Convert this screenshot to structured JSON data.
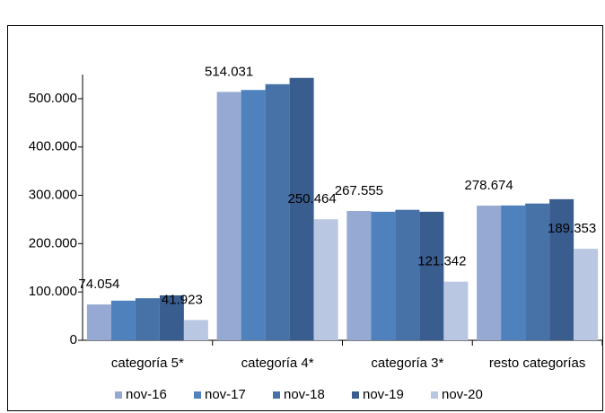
{
  "chart_data": {
    "type": "bar",
    "categories": [
      "categoría 5*",
      "categoría 4*",
      "categoría 3*",
      "resto categorías"
    ],
    "series": [
      {
        "name": "nov-16",
        "color": "#95a9d2",
        "values": [
          74054,
          514031,
          267555,
          278674
        ],
        "value_labels": [
          "74.054",
          "514.031",
          "267.555",
          "278.674"
        ]
      },
      {
        "name": "nov-17",
        "color": "#4f81bd",
        "values": [
          82000,
          518000,
          266000,
          279000
        ]
      },
      {
        "name": "nov-18",
        "color": "#4672a8",
        "values": [
          87000,
          530000,
          270000,
          283000
        ]
      },
      {
        "name": "nov-19",
        "color": "#3a5d8f",
        "values": [
          93000,
          543000,
          266000,
          292000
        ]
      },
      {
        "name": "nov-20",
        "color": "#b9c7e2",
        "values": [
          41923,
          250464,
          121342,
          189353
        ],
        "value_labels": [
          "41.923",
          "250.464",
          "121.342",
          "189.353"
        ]
      }
    ],
    "ylim": [
      0,
      550000
    ],
    "yticks": [
      0,
      {
        "value": 100000,
        "label": "100.000"
      },
      {
        "value": 200000,
        "label": "200.000"
      },
      {
        "value": 300000,
        "label": "300.000"
      },
      {
        "value": 400000,
        "label": "400.000"
      },
      {
        "value": 500000,
        "label": "500.000"
      }
    ],
    "grid": false,
    "legend": "bottom"
  }
}
